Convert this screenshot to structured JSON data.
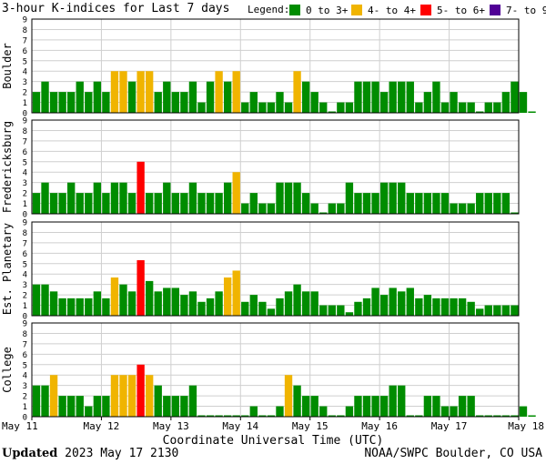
{
  "header": {
    "title": "3-hour K-indices for Last 7 days",
    "legend_title": "Legend:",
    "legend": [
      {
        "label": "0 to 3+",
        "color": "#008c00"
      },
      {
        "label": "4- to 4+",
        "color": "#f0b400"
      },
      {
        "label": "5- to 6+",
        "color": "#ff0000"
      },
      {
        "label": "7- to 9",
        "color": "#500096"
      }
    ]
  },
  "footer": {
    "updated_label": "Updated",
    "updated_value": "2023 May 17 2130",
    "source": "NOAA/SWPC Boulder, CO USA"
  },
  "chart_data": {
    "type": "bar",
    "xlabel": "Coordinate Universal Time (UTC)",
    "x_ticks": [
      "May 11",
      "May 12",
      "May 13",
      "May 14",
      "May 15",
      "May 16",
      "May 17",
      "May 18"
    ],
    "ylim": [
      0,
      9
    ],
    "y_ticks": [
      "0",
      "1",
      "2",
      "3",
      "4",
      "5",
      "6",
      "7",
      "8",
      "9"
    ],
    "interval_hours": 3,
    "thresholds": {
      "yellow_from": 3.67,
      "red_from": 4.67,
      "purple_from": 6.67
    },
    "series": [
      {
        "name": "Boulder",
        "values": [
          2,
          3,
          2,
          2,
          2,
          3,
          2,
          3,
          2,
          4,
          4,
          3,
          4,
          4,
          2,
          3,
          2,
          2,
          3,
          1,
          3,
          4,
          3,
          4,
          1,
          2,
          1,
          1,
          2,
          1,
          4,
          3,
          2,
          1,
          0,
          1,
          1,
          3,
          3,
          3,
          2,
          3,
          3,
          3,
          1,
          2,
          3,
          1,
          2,
          1,
          1,
          0,
          1,
          1,
          2,
          3,
          2,
          0
        ]
      },
      {
        "name": "Fredericksburg",
        "values": [
          2,
          3,
          2,
          2,
          3,
          2,
          2,
          3,
          2,
          3,
          3,
          2,
          5,
          2,
          2,
          3,
          2,
          2,
          3,
          2,
          2,
          2,
          3,
          4,
          1,
          2,
          1,
          1,
          3,
          3,
          3,
          2,
          1,
          0,
          1,
          1,
          3,
          2,
          2,
          2,
          3,
          3,
          3,
          2,
          2,
          2,
          2,
          2,
          1,
          1,
          1,
          2,
          2,
          2,
          2,
          0
        ]
      },
      {
        "name": "Est. Planetary",
        "values": [
          3,
          3,
          2.33,
          1.67,
          1.67,
          1.67,
          1.67,
          2.33,
          1.67,
          3.67,
          3,
          2.33,
          5.33,
          3.33,
          2.33,
          2.67,
          2.67,
          2,
          2.33,
          1.33,
          1.67,
          2.33,
          3.67,
          4.33,
          1.33,
          2,
          1.33,
          0.67,
          1.67,
          2.33,
          3,
          2.33,
          2.33,
          1,
          1,
          1,
          0.33,
          1.33,
          1.67,
          2.67,
          2,
          2.67,
          2.33,
          2.67,
          1.67,
          2,
          1.67,
          1.67,
          1.67,
          1.67,
          1.33,
          0.67,
          1,
          1,
          1,
          1
        ]
      },
      {
        "name": "College",
        "values": [
          3,
          3,
          4,
          2,
          2,
          2,
          1,
          2,
          2,
          4,
          4,
          4,
          5,
          4,
          3,
          2,
          2,
          2,
          3,
          0,
          0,
          0,
          0,
          0,
          0,
          1,
          0,
          0,
          1,
          4,
          3,
          2,
          2,
          1,
          0,
          0,
          1,
          2,
          2,
          2,
          2,
          3,
          3,
          0,
          0,
          2,
          2,
          1,
          1,
          2,
          2,
          0,
          0,
          0,
          0,
          0,
          1,
          0
        ]
      }
    ]
  }
}
